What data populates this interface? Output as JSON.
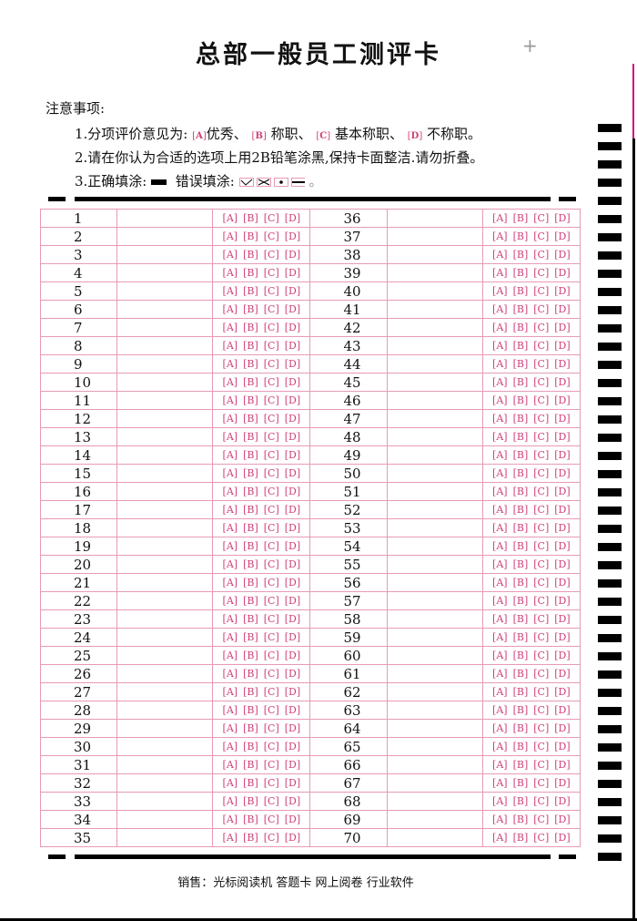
{
  "title": "总部一般员工测评卡",
  "notes": {
    "heading": "注意事项:",
    "line1_prefix": "1.分项评价意见为:",
    "ratings": [
      {
        "key": "A",
        "label": "优秀、"
      },
      {
        "key": "B",
        "label": "称职、"
      },
      {
        "key": "C",
        "label": "基本称职、"
      },
      {
        "key": "D",
        "label": "不称职。"
      }
    ],
    "line2": "2.请在你认为合适的选项上用2B铅笔涂黑,保持卡面整洁.请勿折叠。",
    "line3_correct": "3.正确填涂:",
    "line3_wrong": "错误填涂:",
    "line3_end": "。"
  },
  "options": [
    "A",
    "B",
    "C",
    "D"
  ],
  "left_numbers": [
    1,
    2,
    3,
    4,
    5,
    6,
    7,
    8,
    9,
    10,
    11,
    12,
    13,
    14,
    15,
    16,
    17,
    18,
    19,
    20,
    21,
    22,
    23,
    24,
    25,
    26,
    27,
    28,
    29,
    30,
    31,
    32,
    33,
    34,
    35
  ],
  "right_numbers": [
    36,
    37,
    38,
    39,
    40,
    41,
    42,
    43,
    44,
    45,
    46,
    47,
    48,
    49,
    50,
    51,
    52,
    53,
    54,
    55,
    56,
    57,
    58,
    59,
    60,
    61,
    62,
    63,
    64,
    65,
    66,
    67,
    68,
    69,
    70
  ],
  "footer": "销售：光标阅读机  答题卡  网上阅卷  行业软件",
  "colors": {
    "accent": "#d0407a"
  }
}
